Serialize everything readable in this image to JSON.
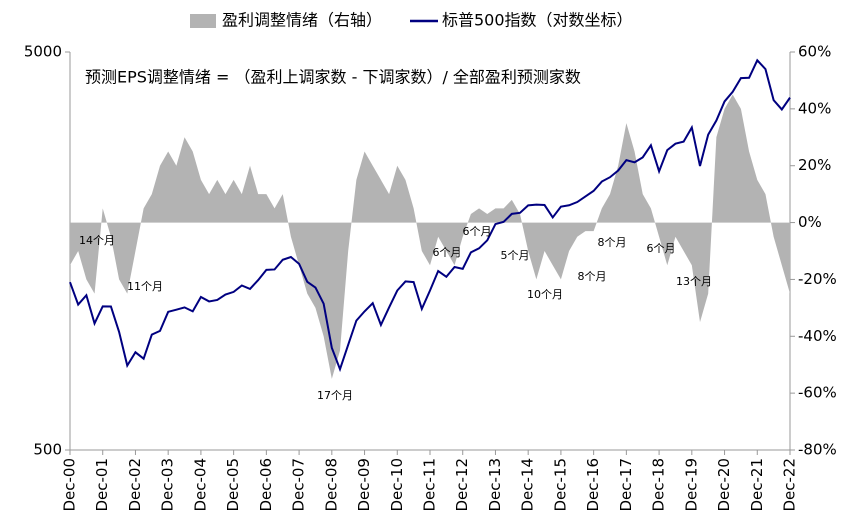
{
  "chart_data": {
    "type": "line",
    "annotation": "预测EPS调整情绪 = （盈利上调家数 - 下调家数）/ 全部盈利预测家数",
    "annotations": [
      "14个月",
      "11个月",
      "17个月",
      "6个月",
      "6个月",
      "5个月",
      "10个月",
      "8个月",
      "8个月",
      "6个月",
      "13个月"
    ],
    "categories": [
      "Dec-00",
      null,
      null,
      null,
      "Dec-01",
      null,
      null,
      null,
      "Dec-02",
      null,
      null,
      null,
      "Dec-03",
      null,
      null,
      null,
      "Dec-04",
      null,
      null,
      null,
      "Dec-05",
      null,
      null,
      null,
      "Dec-06",
      null,
      null,
      null,
      "Dec-07",
      null,
      null,
      null,
      "Dec-08",
      null,
      null,
      null,
      "Dec-09",
      null,
      null,
      null,
      "Dec-10",
      null,
      null,
      null,
      "Dec-11",
      null,
      null,
      null,
      "Dec-12",
      null,
      null,
      null,
      "Dec-13",
      null,
      null,
      null,
      "Dec-14",
      null,
      null,
      null,
      "Dec-15",
      null,
      null,
      null,
      "Dec-16",
      null,
      null,
      null,
      "Dec-17",
      null,
      null,
      null,
      "Dec-18",
      null,
      null,
      null,
      "Dec-19",
      null,
      null,
      null,
      "Dec-20",
      null,
      null,
      null,
      "Dec-21",
      null,
      null,
      null,
      "Dec-22"
    ],
    "series": [
      {
        "name": "盈利调整情绪（右轴）",
        "type": "area",
        "axis": "y2",
        "color": "#b3b3b3",
        "values": [
          -15,
          -10,
          -20,
          -25,
          5,
          -5,
          -20,
          -25,
          -10,
          5,
          10,
          20,
          25,
          20,
          30,
          25,
          15,
          10,
          15,
          10,
          15,
          10,
          20,
          10,
          10,
          5,
          10,
          -5,
          -15,
          -25,
          -30,
          -40,
          -55,
          -45,
          -10,
          15,
          25,
          20,
          15,
          10,
          20,
          15,
          5,
          -10,
          -15,
          -5,
          -10,
          -15,
          -5,
          3,
          5,
          3,
          5,
          5,
          8,
          3,
          -10,
          -20,
          -10,
          -15,
          -20,
          -10,
          -5,
          -3,
          -3,
          5,
          10,
          20,
          35,
          25,
          10,
          5,
          -5,
          -15,
          -5,
          -10,
          -15,
          -35,
          -25,
          30,
          40,
          45,
          40,
          25,
          15,
          10,
          -5,
          -15,
          -25
        ]
      },
      {
        "name": "标普500指数（对数坐标）",
        "type": "line",
        "axis": "y",
        "color": "#000080",
        "values": [
          1320,
          1160,
          1224,
          1040,
          1148,
          1147,
          990,
          815,
          880,
          848,
          975,
          996,
          1112,
          1126,
          1141,
          1115,
          1212,
          1181,
          1191,
          1229,
          1248,
          1295,
          1270,
          1336,
          1418,
          1421,
          1503,
          1527,
          1468,
          1323,
          1280,
          1166,
          903,
          798,
          919,
          1057,
          1115,
          1169,
          1031,
          1141,
          1258,
          1326,
          1321,
          1131,
          1258,
          1408,
          1362,
          1441,
          1426,
          1569,
          1606,
          1682,
          1848,
          1872,
          1960,
          1972,
          2059,
          2068,
          2063,
          1920,
          2044,
          2060,
          2099,
          2168,
          2239,
          2363,
          2423,
          2519,
          2674,
          2641,
          2718,
          2914,
          2507,
          2834,
          2942,
          2977,
          3231,
          2585,
          3100,
          3363,
          3756,
          3973,
          4298,
          4308,
          4766,
          4530,
          3785,
          3586,
          3840
        ]
      }
    ],
    "ylim": [
      500,
      5000
    ],
    "yticks": [
      500,
      5000
    ],
    "log_y": true,
    "y2lim": [
      -80,
      60
    ],
    "y2ticks": [
      {
        "value": -80,
        "label": "-80%"
      },
      {
        "value": -60,
        "label": "-60%"
      },
      {
        "value": -40,
        "label": "-40%"
      },
      {
        "value": -20,
        "label": "-20%"
      },
      {
        "value": 0,
        "label": "0%"
      },
      {
        "value": 20,
        "label": "20%"
      },
      {
        "value": 40,
        "label": "40%"
      },
      {
        "value": 60,
        "label": "60%"
      }
    ],
    "legend": "top"
  }
}
